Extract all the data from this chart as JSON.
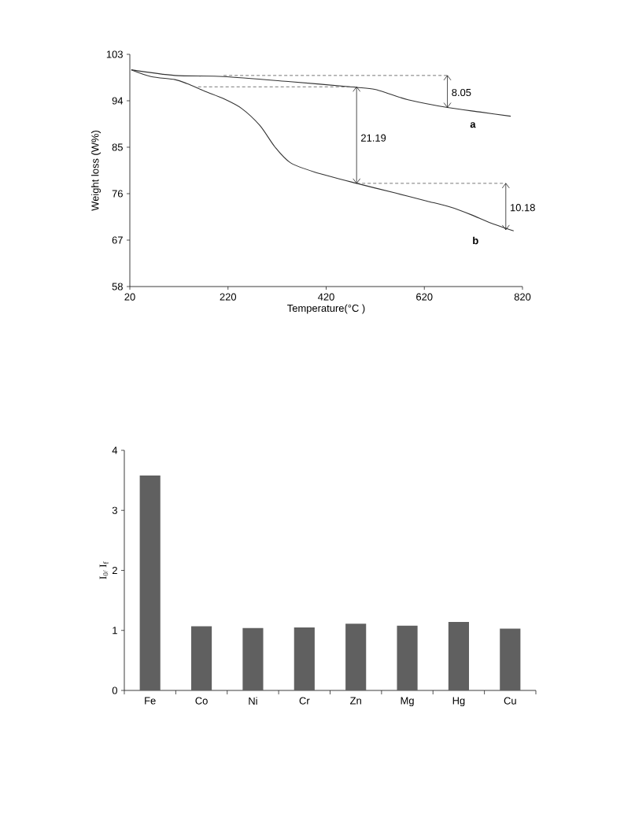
{
  "chart_data": [
    {
      "type": "line",
      "xlabel": "Temperature(°C )",
      "ylabel": "Weight loss (W%)",
      "xlim": [
        20,
        820
      ],
      "xticks": [
        20,
        220,
        420,
        620,
        820
      ],
      "ylim": [
        58,
        103
      ],
      "yticks": [
        58,
        67,
        76,
        85,
        94,
        103
      ],
      "grid": false,
      "marker": "none",
      "series": [
        {
          "name": "a",
          "color": "#333333",
          "x": [
            23,
            112,
            211,
            347,
            482,
            519,
            550,
            587,
            667,
            735,
            796
          ],
          "values": [
            100,
            98.9,
            98.7,
            97.7,
            96.6,
            96.2,
            95.3,
            94.2,
            92.7,
            91.8,
            91.0
          ]
        },
        {
          "name": "b",
          "color": "#333333",
          "x": [
            23,
            63,
            112,
            137,
            174,
            211,
            248,
            285,
            316,
            347,
            396,
            482,
            562,
            624,
            673,
            716,
            753,
            802
          ],
          "values": [
            100,
            98.7,
            98.1,
            97.3,
            95.8,
            94.4,
            92.5,
            89.2,
            85.0,
            82.0,
            80.2,
            78.0,
            76.1,
            74.6,
            73.4,
            71.9,
            70.4,
            68.8
          ]
        },
        {
          "color": "#555555",
          "line_style": "dashed",
          "x": [
            211,
            667
          ],
          "values": [
            98.9,
            98.9
          ]
        },
        {
          "color": "#555555",
          "line_style": "dashed",
          "x": [
            159,
            482
          ],
          "values": [
            96.7,
            96.7
          ]
        },
        {
          "color": "#555555",
          "line_style": "dashed",
          "x": [
            482,
            786
          ],
          "values": [
            78.0,
            78.0
          ]
        },
        {
          "color": "#222222",
          "line_style": "solid",
          "x": [
            667,
            667
          ],
          "values": [
            98.9,
            92.7
          ]
        },
        {
          "color": "#222222",
          "line_style": "solid",
          "x": [
            482,
            482
          ],
          "values": [
            96.7,
            78.0
          ]
        },
        {
          "color": "#222222",
          "line_style": "solid",
          "x": [
            786,
            786
          ],
          "values": [
            78.0,
            69.0
          ]
        }
      ],
      "annotations": [
        {
          "text": "8.05",
          "x": 667,
          "y": 95.6
        },
        {
          "text": "21.19",
          "x": 482,
          "y": 86.8
        },
        {
          "text": "10.18",
          "x": 786,
          "y": 73.3
        }
      ]
    },
    {
      "type": "bar",
      "ylabel": "I$_{0/}$ I$_{f}$",
      "categories": [
        "Fe",
        "Co",
        "Ni",
        "Cr",
        "Zn",
        "Mg",
        "Hg",
        "Cu"
      ],
      "values": [
        3.58,
        1.07,
        1.04,
        1.05,
        1.11,
        1.08,
        1.14,
        1.03
      ],
      "color": "#606060",
      "ylim": [
        0,
        4
      ],
      "yticks": [
        0,
        1,
        2,
        3,
        4
      ],
      "grid": false
    }
  ]
}
